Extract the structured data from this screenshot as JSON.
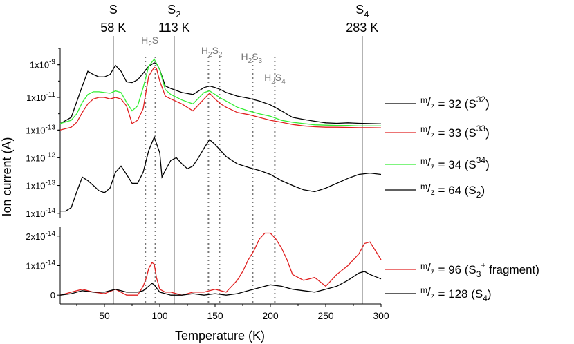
{
  "chart_data": {
    "type": "line",
    "xlabel": "Temperature (K)",
    "ylabel": "Ion current (A)",
    "xlim": [
      10,
      300
    ],
    "x_ticks": [
      "50",
      "100",
      "150",
      "200",
      "250",
      "300"
    ],
    "x_tick_values": [
      50,
      100,
      150,
      200,
      250,
      300
    ],
    "markers": [
      {
        "species": "S",
        "species_sub": "",
        "label": "58 K",
        "x": 58
      },
      {
        "species": "S",
        "species_sub": "2",
        "label": "113 K",
        "x": 113
      },
      {
        "species": "S",
        "species_sub": "4",
        "label": "283 K",
        "x": 283
      }
    ],
    "dotted_markers": [
      {
        "prefix": "H",
        "sub1": "2",
        "mid": "S",
        "sub2": "",
        "x": 91
      },
      {
        "prefix": "H",
        "sub1": "2",
        "mid": "S",
        "sub2": "2",
        "x": 147
      },
      {
        "prefix": "H",
        "sub1": "2",
        "mid": "S",
        "sub2": "3",
        "x": 183
      },
      {
        "prefix": "H",
        "sub1": "2",
        "mid": "S",
        "sub2": "4",
        "x": 204
      }
    ],
    "dotted_marker_lines": [
      87,
      96,
      144,
      154,
      184,
      204
    ],
    "panels": [
      {
        "name": "top",
        "scale": "log",
        "ylim": [
          7e-14,
          1e-08
        ],
        "y_ticks": [
          {
            "mant": "1x10",
            "exp": "-9",
            "value": 1e-09
          },
          {
            "mant": "1x10",
            "exp": "-11",
            "value": 1e-11
          },
          {
            "mant": "1x10",
            "exp": "-13",
            "value": 1e-13
          }
        ],
        "series": [
          {
            "mz": "32",
            "iso": "S",
            "iso_sup": "32",
            "color": "#000000",
            "x": [
              10,
              20,
              30,
              35,
              40,
              45,
              50,
              55,
              60,
              65,
              70,
              75,
              80,
              85,
              90,
              95,
              97,
              100,
              105,
              110,
              120,
              130,
              140,
              145,
              150,
              155,
              160,
              170,
              180,
              190,
              200,
              210,
              220,
              230,
              240,
              250,
              260,
              270,
              280,
              290,
              300
            ],
            "y": [
              2.5e-13,
              6e-13,
              5e-11,
              4e-10,
              2.5e-10,
              1.8e-10,
              1.8e-10,
              2.5e-10,
              9e-10,
              4e-10,
              9e-11,
              8e-11,
              1.2e-10,
              3e-10,
              8e-10,
              1.3e-09,
              1.2e-09,
              5e-10,
              5e-11,
              3.5e-11,
              2e-11,
              1.5e-11,
              4e-11,
              5e-11,
              4e-11,
              3e-11,
              2e-11,
              1.2e-11,
              9e-12,
              6e-12,
              3.5e-12,
              1.5e-12,
              6e-13,
              4.5e-13,
              3.5e-13,
              2.8e-13,
              2.6e-13,
              2.8e-13,
              2.6e-13,
              2.5e-13,
              2.4e-13
            ]
          },
          {
            "mz": "33",
            "iso": "S",
            "iso_sup": "33",
            "color": "#e02020",
            "x": [
              10,
              20,
              25,
              30,
              35,
              40,
              45,
              50,
              55,
              60,
              65,
              70,
              75,
              80,
              85,
              90,
              95,
              97,
              100,
              105,
              110,
              120,
              130,
              140,
              145,
              150,
              155,
              160,
              170,
              180,
              190,
              200,
              210,
              220,
              230,
              240,
              250,
              260,
              270,
              280,
              290,
              300
            ],
            "y": [
              1e-13,
              1.5e-13,
              3e-13,
              1.2e-12,
              4e-12,
              8e-12,
              1e-11,
              1e-11,
              8e-12,
              1e-11,
              8e-12,
              3e-12,
              2.5e-13,
              4e-13,
              2e-12,
              2e-10,
              7e-10,
              6e-10,
              1e-10,
              1.2e-11,
              8e-12,
              4e-12,
              1.5e-12,
              8e-12,
              1.8e-11,
              8e-12,
              4e-12,
              2.5e-12,
              1.2e-12,
              9e-13,
              6e-13,
              4e-13,
              3e-13,
              2.2e-13,
              1.8e-13,
              1.6e-13,
              1.5e-13,
              1.5e-13,
              1.45e-13,
              1.4e-13,
              1.4e-13,
              1.35e-13
            ]
          },
          {
            "mz": "34",
            "iso": "S",
            "iso_sup": "34",
            "color": "#33ee33",
            "x": [
              10,
              20,
              25,
              30,
              35,
              40,
              45,
              50,
              55,
              60,
              65,
              70,
              75,
              80,
              85,
              90,
              95,
              100,
              105,
              110,
              120,
              130,
              140,
              145,
              150,
              155,
              160,
              170,
              180,
              190,
              200,
              210,
              220,
              230,
              240,
              250,
              260,
              270,
              280,
              290,
              300
            ],
            "y": [
              2.5e-13,
              4e-13,
              1e-12,
              5e-12,
              1.5e-11,
              2.2e-11,
              2.2e-11,
              2e-11,
              1.8e-11,
              2.5e-11,
              2e-11,
              5e-12,
              1.5e-12,
              3e-12,
              4e-11,
              8e-10,
              2.2e-09,
              5e-10,
              3e-11,
              1.5e-11,
              7e-12,
              4e-12,
              2e-11,
              2.5e-11,
              1.5e-11,
              9e-12,
              6e-12,
              2.5e-12,
              1.5e-12,
              1e-12,
              7e-13,
              4e-13,
              3e-13,
              2.5e-13,
              2.1e-13,
              2e-13,
              1.9e-13,
              1.9e-13,
              1.8e-13,
              1.8e-13,
              1.8e-13
            ]
          }
        ]
      },
      {
        "name": "middle",
        "scale": "log",
        "ylim": [
          7e-15,
          8e-12
        ],
        "y_ticks": [
          {
            "mant": "1x10",
            "exp": "-12",
            "value": 1e-12
          },
          {
            "mant": "1x10",
            "exp": "-13",
            "value": 1e-13
          },
          {
            "mant": "1x10",
            "exp": "-14",
            "value": 1e-14
          }
        ],
        "series": [
          {
            "mz": "64",
            "iso": "S",
            "iso_sub": "2",
            "color": "#000000",
            "x": [
              10,
              15,
              20,
              25,
              30,
              35,
              40,
              45,
              50,
              55,
              60,
              65,
              70,
              75,
              80,
              85,
              90,
              95,
              100,
              102,
              105,
              110,
              115,
              120,
              125,
              130,
              135,
              140,
              145,
              150,
              155,
              160,
              170,
              180,
              190,
              200,
              210,
              220,
              230,
              240,
              250,
              260,
              270,
              280,
              290,
              300
            ],
            "y": [
              1.2e-14,
              1.2e-14,
              1.6e-14,
              6e-14,
              2e-13,
              1.5e-13,
              1e-13,
              6.5e-14,
              5.5e-14,
              8e-14,
              3e-13,
              5e-13,
              2.5e-13,
              1.2e-13,
              1.2e-13,
              3e-13,
              1.8e-12,
              5.5e-12,
              1.5e-12,
              2e-13,
              3.5e-13,
              8e-13,
              1e-12,
              6e-13,
              4e-13,
              5e-13,
              1e-12,
              2.2e-12,
              4.5e-12,
              3e-12,
              1.8e-12,
              1.1e-12,
              6e-13,
              4.5e-13,
              3.5e-13,
              2.5e-13,
              1.5e-13,
              1e-13,
              7e-14,
              6e-14,
              8e-14,
              1.2e-13,
              1.8e-13,
              2.5e-13,
              2.8e-13,
              2.5e-13
            ]
          }
        ]
      },
      {
        "name": "bottom",
        "scale": "linear",
        "ylim": [
          -3e-15,
          2.3e-14
        ],
        "y_ticks": [
          {
            "mant": "2x10",
            "exp": "-14",
            "value": 2e-14
          },
          {
            "mant": "1x10",
            "exp": "-14",
            "value": 1e-14
          },
          {
            "mant": "0",
            "exp": "",
            "value": 0
          }
        ],
        "series": [
          {
            "mz": "96",
            "iso": "S",
            "iso_sub": "3",
            "iso_sup": "+",
            "suffix": "fragment",
            "color": "#e02020",
            "x": [
              10,
              20,
              30,
              40,
              50,
              60,
              70,
              80,
              85,
              88,
              90,
              93,
              95,
              97,
              100,
              105,
              110,
              120,
              130,
              140,
              150,
              160,
              165,
              170,
              175,
              180,
              185,
              190,
              195,
              200,
              205,
              210,
              215,
              220,
              225,
              230,
              240,
              250,
              260,
              270,
              280,
              285,
              290,
              300
            ],
            "y": [
              0,
              1e-15,
              2e-15,
              1e-15,
              5e-16,
              2e-15,
              0,
              0,
              3e-15,
              6e-15,
              9e-15,
              1.1e-14,
              1.05e-14,
              6e-15,
              2e-15,
              1e-15,
              1e-15,
              0,
              1e-15,
              1e-15,
              2e-15,
              1e-15,
              3e-15,
              5e-15,
              8e-15,
              1.2e-14,
              1.5e-14,
              1.9e-14,
              2.1e-14,
              2.1e-14,
              1.9e-14,
              1.6e-14,
              1.2e-14,
              7e-15,
              6e-15,
              5e-15,
              6e-15,
              3e-15,
              7e-15,
              1e-14,
              1.4e-14,
              1.75e-14,
              1.8e-14,
              1.2e-14
            ]
          },
          {
            "mz": "128",
            "iso": "S",
            "iso_sub": "4",
            "color": "#000000",
            "x": [
              10,
              20,
              30,
              40,
              50,
              60,
              70,
              80,
              85,
              90,
              93,
              95,
              98,
              100,
              110,
              120,
              130,
              140,
              150,
              160,
              170,
              180,
              190,
              200,
              210,
              220,
              230,
              240,
              250,
              260,
              270,
              280,
              285,
              290,
              300
            ],
            "y": [
              0,
              5e-16,
              1.5e-15,
              1e-15,
              1e-15,
              2e-15,
              1e-15,
              1e-15,
              1.5e-15,
              3e-15,
              4e-15,
              3.5e-15,
              2e-15,
              1e-15,
              0,
              0,
              5e-16,
              0,
              5e-16,
              0,
              5e-16,
              1.5e-15,
              2.5e-15,
              3.5e-15,
              3e-15,
              2e-15,
              1.5e-15,
              1e-15,
              2e-15,
              3e-15,
              5e-15,
              7.5e-15,
              8e-15,
              7e-15,
              5.5e-15
            ]
          }
        ]
      }
    ]
  }
}
